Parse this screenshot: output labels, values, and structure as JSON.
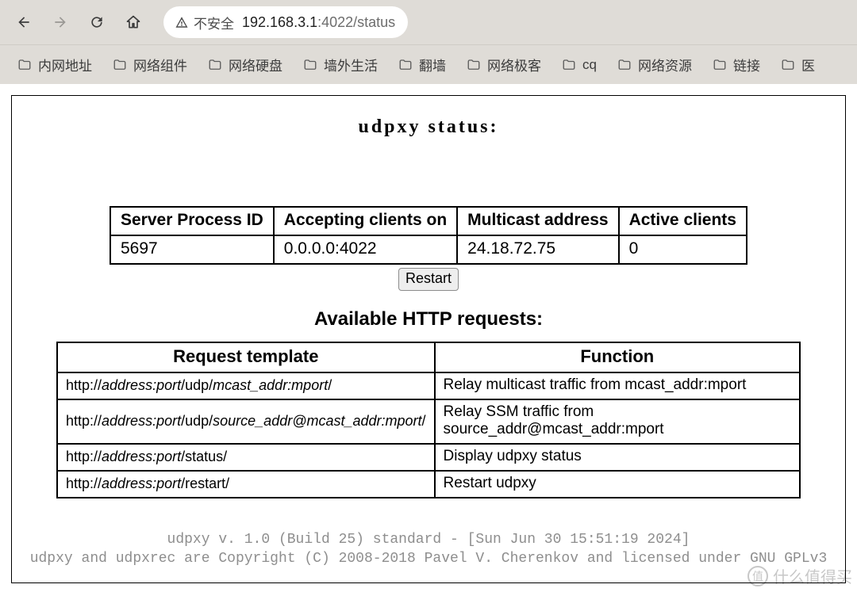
{
  "browser": {
    "security_label": "不安全",
    "url_host": "192.168.3.1",
    "url_rest": ":4022/status",
    "bookmarks": [
      "内网地址",
      "网络组件",
      "网络硬盘",
      "墙外生活",
      "翻墙",
      "网络极客",
      "cq",
      "网络资源",
      "链接",
      "医"
    ],
    "colors": {
      "chrome_bg": "#dfdcd7",
      "addr_bg": "#ffffff"
    }
  },
  "page": {
    "title": "udpxy status:",
    "status_table": {
      "columns": [
        "Server Process ID",
        "Accepting clients on",
        "Multicast address",
        "Active clients"
      ],
      "rows": [
        [
          "5697",
          "0.0.0.0:4022",
          "24.18.72.75",
          "0"
        ]
      ]
    },
    "restart_label": "Restart",
    "available_title": "Available HTTP requests:",
    "requests_table": {
      "columns": [
        "Request template",
        "Function"
      ],
      "rows": [
        {
          "tmpl": [
            [
              "http://",
              0
            ],
            [
              "address:port",
              1
            ],
            [
              "/udp/",
              0
            ],
            [
              "mcast_addr:mport",
              1
            ],
            [
              "/",
              0
            ]
          ],
          "func": "Relay multicast traffic from mcast_addr:mport"
        },
        {
          "tmpl": [
            [
              "http://",
              0
            ],
            [
              "address:port",
              1
            ],
            [
              "/udp/",
              0
            ],
            [
              "source_addr@mcast_addr:mport",
              1
            ],
            [
              "/",
              0
            ]
          ],
          "func": "Relay SSM traffic from source_addr@mcast_addr:mport"
        },
        {
          "tmpl": [
            [
              "http://",
              0
            ],
            [
              "address:port",
              1
            ],
            [
              "/status/",
              0
            ]
          ],
          "func": "Display udpxy status"
        },
        {
          "tmpl": [
            [
              "http://",
              0
            ],
            [
              "address:port",
              1
            ],
            [
              "/restart/",
              0
            ]
          ],
          "func": "Restart udpxy"
        }
      ]
    },
    "footer_line1": "udpxy v. 1.0 (Build 25) standard - [Sun Jun 30 15:51:19 2024]",
    "footer_line2": "udpxy and udpxrec are Copyright (C) 2008-2018 Pavel V. Cherenkov and licensed under GNU GPLv3",
    "colors": {
      "border": "#000000",
      "footer_text": "#8e8e8e",
      "button_bg": "#eeeeee",
      "button_border": "#8c8c8c"
    }
  },
  "watermark": "什么值得买"
}
